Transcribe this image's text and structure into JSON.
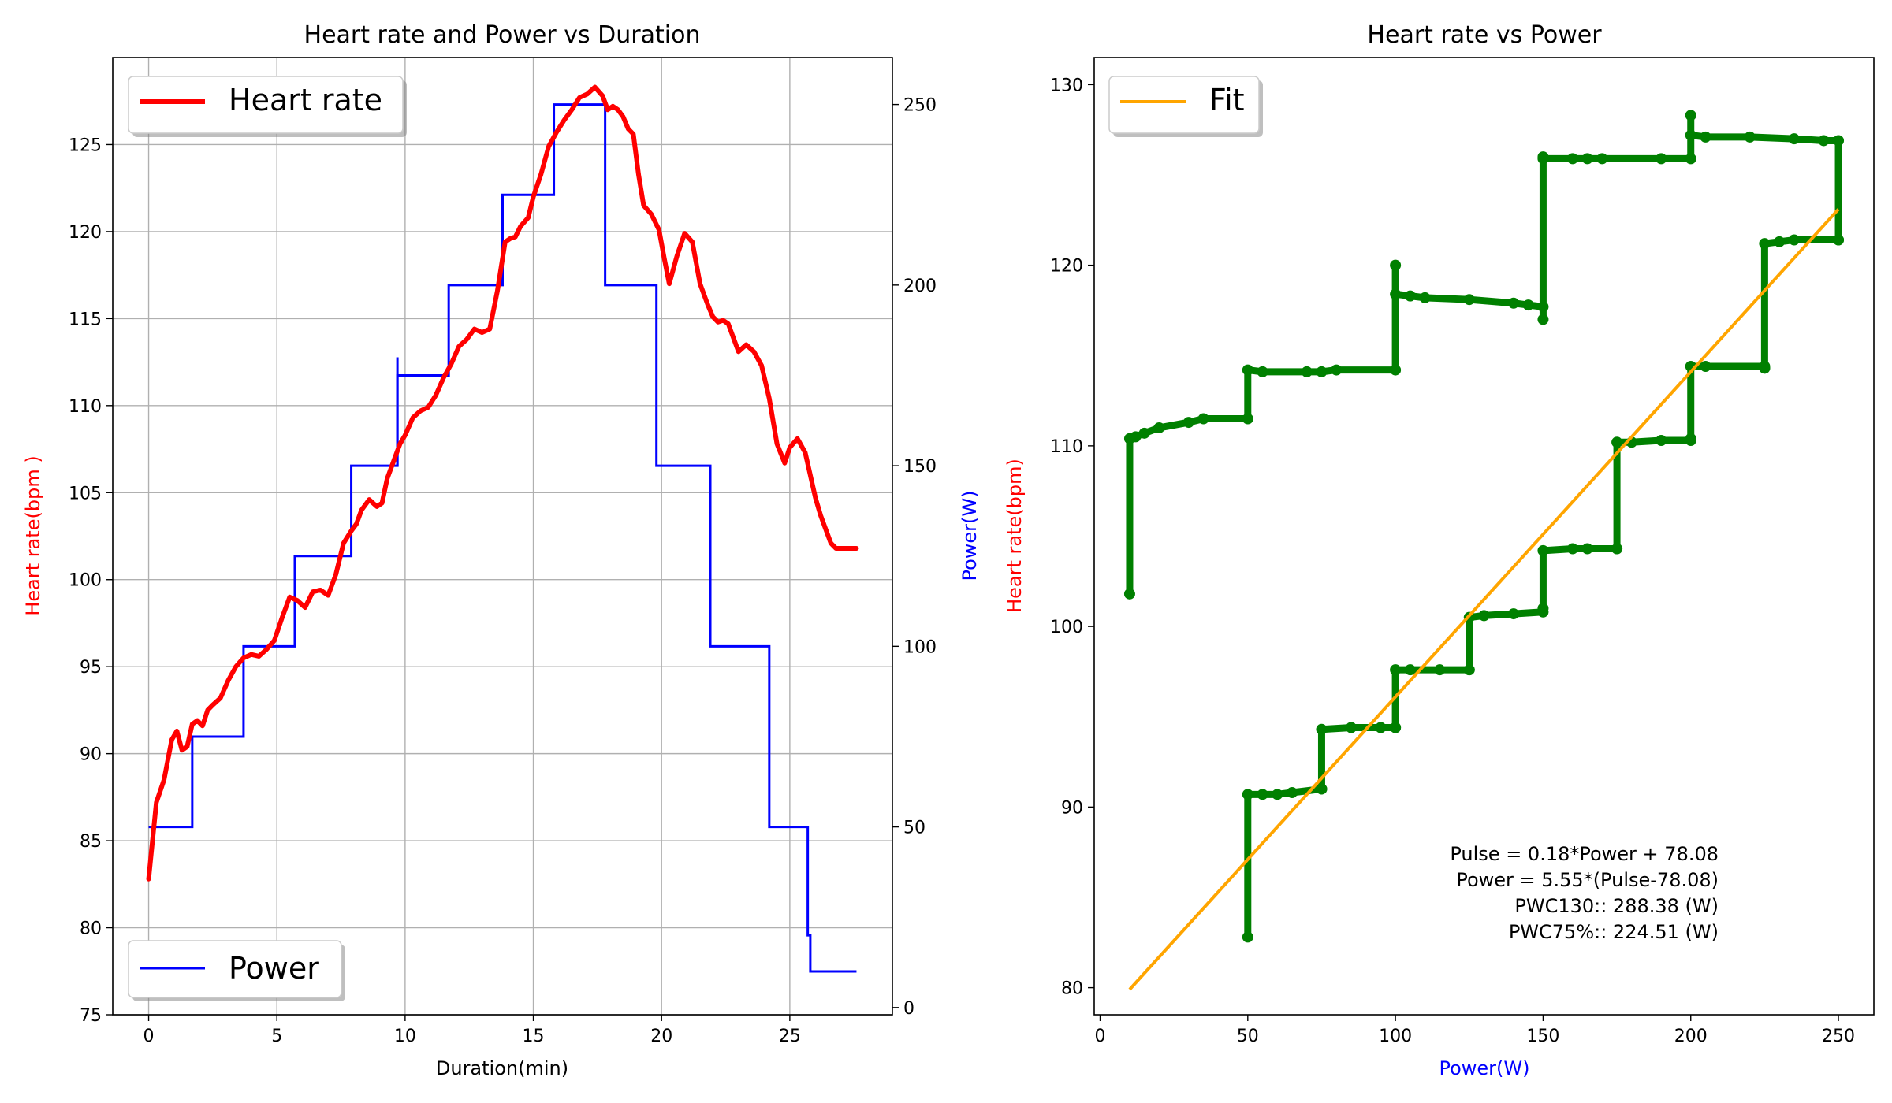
{
  "chart_data": [
    {
      "type": "line",
      "title": "Heart rate and Power vs Duration",
      "xlabel": "Duration(min)",
      "ylabel_left": "Heart rate(bpm )",
      "ylabel_right": "Power(W)",
      "xlim": [
        -1.4,
        29.0
      ],
      "ylim_left": [
        75,
        130
      ],
      "ylim_right": [
        -2,
        263
      ],
      "xticks": [
        "0",
        "5",
        "10",
        "15",
        "20",
        "25"
      ],
      "yticks_left": [
        "75",
        "80",
        "85",
        "90",
        "95",
        "100",
        "105",
        "110",
        "115",
        "120",
        "125"
      ],
      "yticks_right": [
        "0",
        "50",
        "100",
        "150",
        "200",
        "250"
      ],
      "grid": true,
      "legend_left": {
        "label": "Heart rate",
        "placement": "upper-left"
      },
      "legend_right": {
        "label": "Power",
        "placement": "lower-left"
      },
      "colors": {
        "hr": "#ff0000",
        "power": "#0000ff",
        "grid": "#b0b0b0"
      },
      "series": [
        {
          "name": "Heart rate",
          "axis": "left",
          "x": [
            0,
            0.3,
            0.6,
            0.9,
            1.1,
            1.3,
            1.5,
            1.7,
            1.9,
            2.1,
            2.3,
            2.5,
            2.8,
            3.1,
            3.4,
            3.7,
            4.0,
            4.3,
            4.6,
            4.9,
            5.2,
            5.5,
            5.8,
            6.1,
            6.4,
            6.7,
            7.0,
            7.3,
            7.6,
            7.9,
            8.1,
            8.3,
            8.6,
            8.9,
            9.1,
            9.3,
            9.6,
            9.8,
            10.0,
            10.3,
            10.6,
            10.9,
            11.2,
            11.5,
            11.8,
            12.1,
            12.4,
            12.7,
            13.0,
            13.3,
            13.6,
            13.9,
            14.1,
            14.3,
            14.5,
            14.8,
            15.0,
            15.3,
            15.6,
            15.9,
            16.2,
            16.5,
            16.8,
            17.1,
            17.4,
            17.7,
            17.9,
            18.1,
            18.3,
            18.5,
            18.7,
            18.9,
            19.1,
            19.3,
            19.6,
            19.9,
            20.1,
            20.3,
            20.6,
            20.9,
            21.2,
            21.5,
            21.8,
            22.0,
            22.2,
            22.4,
            22.6,
            22.8,
            23.0,
            23.3,
            23.6,
            23.9,
            24.2,
            24.5,
            24.8,
            25.0,
            25.3,
            25.6,
            25.8,
            26.0,
            26.2,
            26.4,
            26.6,
            26.8,
            27.0,
            27.2,
            27.4,
            27.6
          ],
          "y": [
            82.8,
            87.2,
            88.5,
            90.8,
            91.3,
            90.2,
            90.4,
            91.7,
            91.9,
            91.6,
            92.5,
            92.8,
            93.2,
            94.2,
            95.0,
            95.5,
            95.7,
            95.6,
            96.0,
            96.5,
            97.8,
            99.0,
            98.8,
            98.4,
            99.3,
            99.4,
            99.1,
            100.3,
            102.1,
            102.8,
            103.2,
            104.0,
            104.6,
            104.2,
            104.4,
            105.8,
            107.0,
            107.8,
            108.3,
            109.3,
            109.7,
            109.9,
            110.6,
            111.6,
            112.4,
            113.4,
            113.8,
            114.4,
            114.2,
            114.4,
            116.6,
            119.4,
            119.6,
            119.7,
            120.3,
            120.8,
            122.0,
            123.3,
            124.9,
            125.7,
            126.4,
            127.0,
            127.7,
            127.9,
            128.3,
            127.8,
            127.0,
            127.2,
            127.0,
            126.6,
            125.9,
            125.6,
            123.3,
            121.5,
            121.0,
            120.1,
            118.5,
            117.0,
            118.6,
            119.9,
            119.4,
            117.0,
            115.8,
            115.1,
            114.8,
            114.9,
            114.7,
            113.9,
            113.1,
            113.5,
            113.1,
            112.3,
            110.4,
            107.8,
            106.7,
            107.6,
            108.1,
            107.3,
            106.0,
            104.7,
            103.7,
            102.9,
            102.1,
            101.8,
            101.8,
            101.8,
            101.8,
            101.8
          ]
        },
        {
          "name": "Power",
          "axis": "right",
          "step_x": [
            0,
            1.7,
            3.7,
            5.7,
            7.9,
            9.7,
            11.7,
            13.8,
            15.8,
            17.8,
            19.8,
            21.9,
            24.2,
            25.7,
            25.8,
            27.6
          ],
          "step_y": [
            50,
            75,
            100,
            125,
            150,
            175,
            200,
            225,
            250,
            200,
            150,
            100,
            50,
            20,
            10,
            10
          ],
          "spike": {
            "x": 9.7,
            "y": 180
          }
        }
      ]
    },
    {
      "type": "scatter",
      "title": "Heart rate vs Power",
      "xlabel": "Power(W)",
      "ylabel": "Heart rate(bpm)",
      "xlim": [
        -2,
        262
      ],
      "ylim": [
        78.5,
        131.5
      ],
      "xticks": [
        "0",
        "50",
        "100",
        "150",
        "200",
        "250"
      ],
      "yticks": [
        "80",
        "90",
        "100",
        "110",
        "120",
        "130"
      ],
      "grid": false,
      "legend": {
        "label": "Fit",
        "placement": "upper-left"
      },
      "colors": {
        "data": "#008000",
        "fit": "#ffa500",
        "xlabel": "#0000ff",
        "ylabel": "#ff0000"
      },
      "fit_line": {
        "x": [
          10,
          250
        ],
        "y": [
          79.9,
          123.1
        ]
      },
      "annotation": [
        "Pulse = 0.18*Power + 78.08",
        "Power = 5.55*(Pulse-78.08)",
        "PWC130:: 288.38 (W)",
        "PWC75%:: 224.51 (W)"
      ],
      "path_x": [
        10,
        10,
        12,
        15,
        20,
        30,
        35,
        50,
        50,
        55,
        70,
        75,
        80,
        100,
        100,
        100,
        105,
        110,
        125,
        140,
        145,
        150,
        150,
        150,
        150,
        160,
        165,
        170,
        190,
        200,
        200,
        200,
        205,
        220,
        235,
        245,
        250,
        250,
        250,
        235,
        230,
        225,
        225,
        225,
        225,
        205,
        200,
        200,
        200,
        190,
        180,
        175,
        175,
        175,
        165,
        160,
        150,
        150,
        150,
        140,
        130,
        125,
        125,
        125,
        115,
        105,
        100,
        100,
        100,
        95,
        85,
        75,
        75,
        75,
        65,
        60,
        55,
        50,
        50
      ],
      "path_y": [
        101.8,
        110.4,
        110.5,
        110.7,
        111.0,
        111.3,
        111.5,
        111.5,
        114.2,
        114.1,
        114.1,
        114.1,
        114.2,
        114.2,
        120.0,
        118.4,
        118.3,
        118.2,
        118.1,
        117.9,
        117.8,
        117.7,
        117.0,
        126.0,
        125.9,
        125.9,
        125.9,
        125.9,
        125.9,
        125.9,
        128.3,
        127.2,
        127.1,
        127.1,
        127.0,
        126.9,
        126.9,
        121.4,
        121.4,
        121.4,
        121.3,
        121.2,
        114.3,
        114.3,
        114.4,
        114.4,
        114.4,
        110.4,
        110.3,
        110.3,
        110.2,
        110.2,
        104.3,
        104.3,
        104.3,
        104.3,
        104.2,
        101.0,
        100.8,
        100.7,
        100.6,
        100.5,
        97.6,
        97.6,
        97.6,
        97.6,
        97.6,
        94.4,
        94.4,
        94.4,
        94.4,
        94.3,
        91.0,
        91.0,
        90.8,
        90.7,
        90.7,
        90.7,
        82.8
      ]
    }
  ]
}
